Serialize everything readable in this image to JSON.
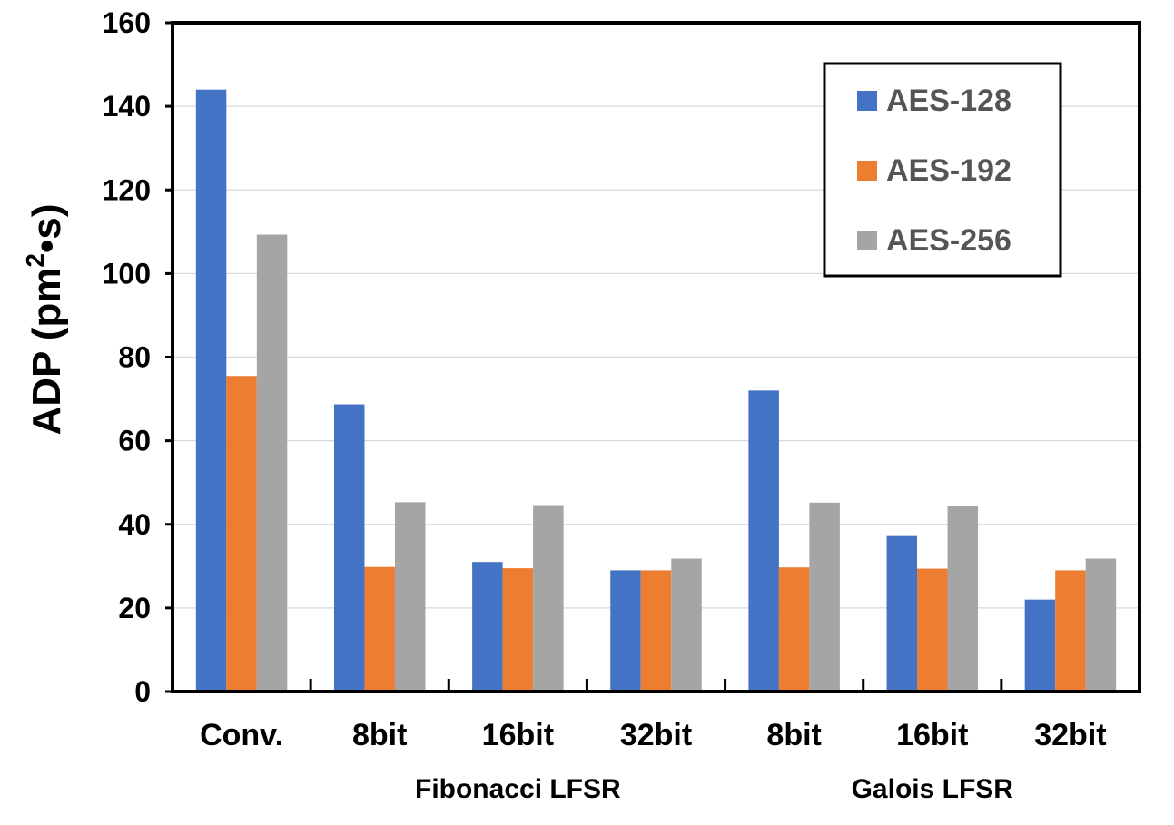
{
  "chart_data": {
    "type": "bar",
    "categories": [
      "Conv.",
      "8bit",
      "16bit",
      "32bit",
      "8bit",
      "16bit",
      "32bit"
    ],
    "category_groups": [
      {
        "label": "Fibonacci LFSR",
        "categories": [
          1,
          2,
          3
        ]
      },
      {
        "label": "Galois LFSR",
        "categories": [
          4,
          5,
          6
        ]
      }
    ],
    "series": [
      {
        "name": "AES-128",
        "color": "#4472C4",
        "values": [
          144,
          68.7,
          31,
          29,
          72,
          37.2,
          22
        ]
      },
      {
        "name": "AES-192",
        "color": "#ED7D31",
        "values": [
          75.5,
          29.8,
          29.5,
          29,
          29.7,
          29.4,
          29
        ]
      },
      {
        "name": "AES-256",
        "color": "#A5A5A5",
        "values": [
          109.3,
          45.3,
          44.6,
          31.8,
          45.2,
          44.5,
          31.8
        ]
      }
    ],
    "title": "",
    "xlabel": "",
    "ylabel": {
      "main": "ADP (pm",
      "sup": "2",
      "tail": "•s)"
    },
    "ylim": [
      0,
      160
    ],
    "yticks": [
      0,
      20,
      40,
      60,
      80,
      100,
      120,
      140,
      160
    ],
    "grid": true,
    "legend": "top-right"
  }
}
